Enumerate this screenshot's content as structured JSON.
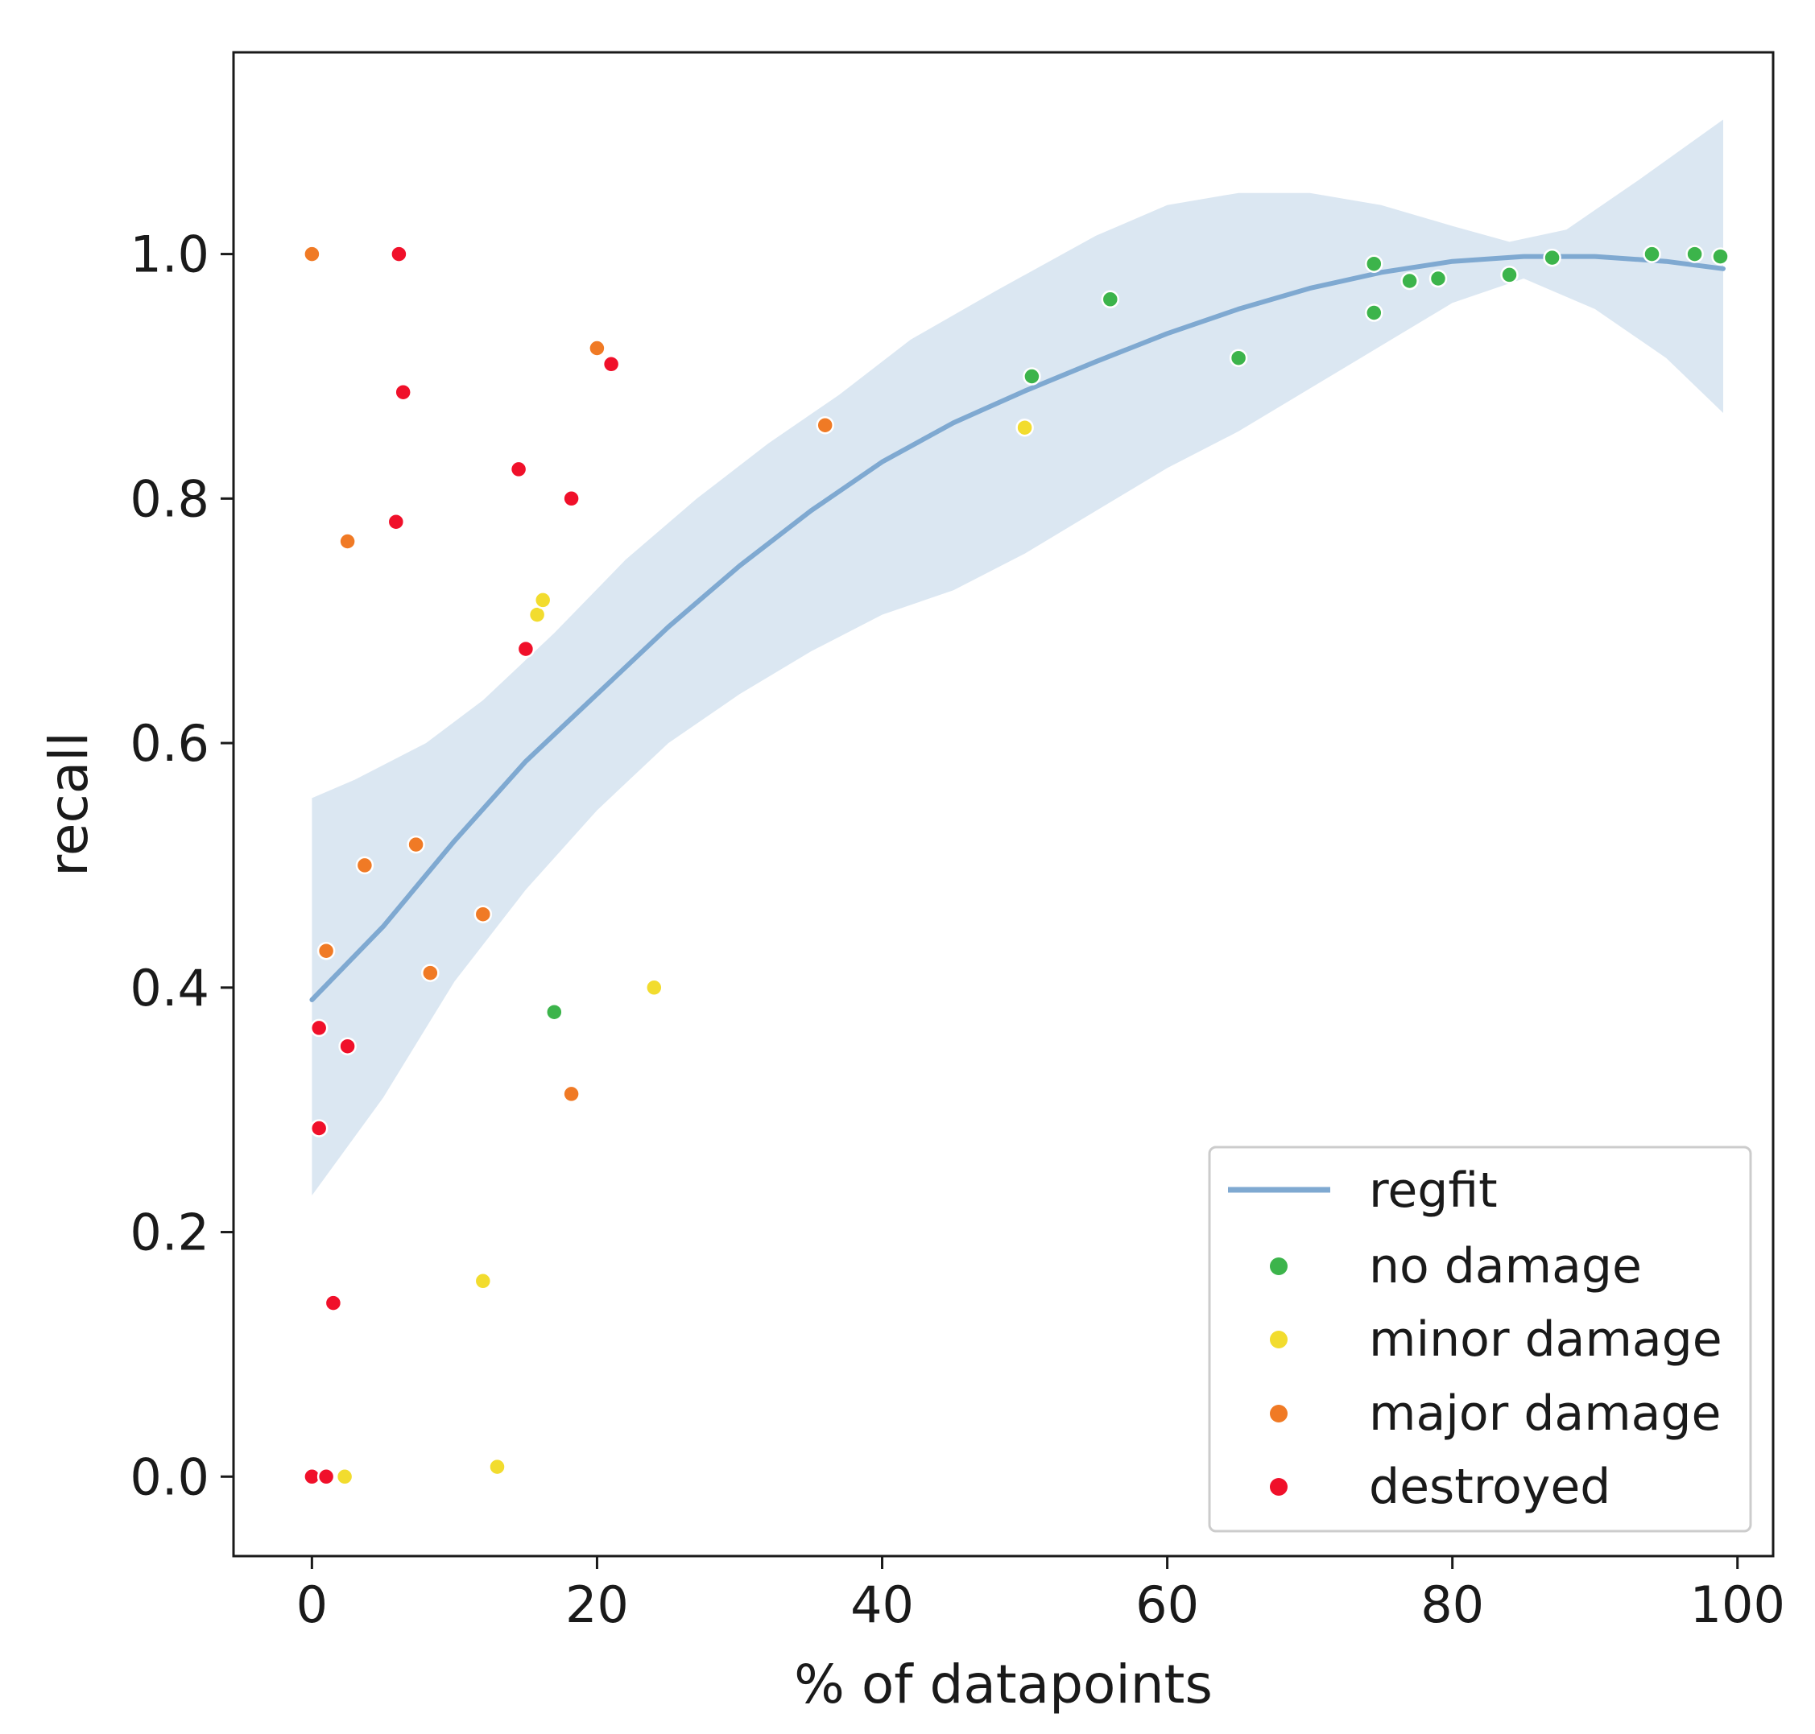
{
  "chart_data": {
    "type": "scatter",
    "title": "",
    "xlabel": "% of datapoints",
    "ylabel": "recall",
    "xlim": [
      -5.5,
      102.5
    ],
    "ylim": [
      -0.065,
      1.165
    ],
    "xticks": [
      0,
      20,
      40,
      60,
      80,
      100
    ],
    "xtick_labels": [
      "0",
      "20",
      "40",
      "60",
      "80",
      "100"
    ],
    "yticks": [
      0.0,
      0.2,
      0.4,
      0.6,
      0.8,
      1.0
    ],
    "ytick_labels": [
      "0.0",
      "0.2",
      "0.4",
      "0.6",
      "0.8",
      "1.0"
    ],
    "grid": false,
    "legend_position": "lower-right",
    "legend_labels": [
      "regfit",
      "no damage",
      "minor damage",
      "major damage",
      "destroyed"
    ],
    "regfit": {
      "name": "regfit",
      "color": "#7fa9d1",
      "band_color": "#dbe7f2",
      "line": [
        {
          "x": 0,
          "y": 0.39
        },
        {
          "x": 5,
          "y": 0.45
        },
        {
          "x": 10,
          "y": 0.52
        },
        {
          "x": 15,
          "y": 0.585
        },
        {
          "x": 20,
          "y": 0.64
        },
        {
          "x": 25,
          "y": 0.695
        },
        {
          "x": 30,
          "y": 0.745
        },
        {
          "x": 35,
          "y": 0.79
        },
        {
          "x": 40,
          "y": 0.83
        },
        {
          "x": 45,
          "y": 0.862
        },
        {
          "x": 50,
          "y": 0.888
        },
        {
          "x": 55,
          "y": 0.912
        },
        {
          "x": 60,
          "y": 0.935
        },
        {
          "x": 65,
          "y": 0.955
        },
        {
          "x": 70,
          "y": 0.972
        },
        {
          "x": 75,
          "y": 0.985
        },
        {
          "x": 80,
          "y": 0.994
        },
        {
          "x": 85,
          "y": 0.998
        },
        {
          "x": 90,
          "y": 0.998
        },
        {
          "x": 95,
          "y": 0.994
        },
        {
          "x": 99,
          "y": 0.988
        }
      ],
      "band_upper": [
        {
          "x": 0,
          "y": 0.555
        },
        {
          "x": 3,
          "y": 0.57
        },
        {
          "x": 8,
          "y": 0.6
        },
        {
          "x": 12,
          "y": 0.635
        },
        {
          "x": 17,
          "y": 0.69
        },
        {
          "x": 22,
          "y": 0.75
        },
        {
          "x": 27,
          "y": 0.8
        },
        {
          "x": 32,
          "y": 0.845
        },
        {
          "x": 37,
          "y": 0.885
        },
        {
          "x": 42,
          "y": 0.93
        },
        {
          "x": 48,
          "y": 0.97
        },
        {
          "x": 55,
          "y": 1.015
        },
        {
          "x": 60,
          "y": 1.04
        },
        {
          "x": 65,
          "y": 1.05
        },
        {
          "x": 70,
          "y": 1.05
        },
        {
          "x": 75,
          "y": 1.04
        },
        {
          "x": 80,
          "y": 1.023
        },
        {
          "x": 84,
          "y": 1.01
        },
        {
          "x": 88,
          "y": 1.02
        },
        {
          "x": 93,
          "y": 1.06
        },
        {
          "x": 99,
          "y": 1.11
        }
      ],
      "band_lower": [
        {
          "x": 99,
          "y": 0.87
        },
        {
          "x": 95,
          "y": 0.915
        },
        {
          "x": 90,
          "y": 0.955
        },
        {
          "x": 85,
          "y": 0.98
        },
        {
          "x": 80,
          "y": 0.96
        },
        {
          "x": 75,
          "y": 0.925
        },
        {
          "x": 70,
          "y": 0.89
        },
        {
          "x": 65,
          "y": 0.855
        },
        {
          "x": 60,
          "y": 0.825
        },
        {
          "x": 55,
          "y": 0.79
        },
        {
          "x": 50,
          "y": 0.755
        },
        {
          "x": 45,
          "y": 0.725
        },
        {
          "x": 40,
          "y": 0.705
        },
        {
          "x": 35,
          "y": 0.675
        },
        {
          "x": 30,
          "y": 0.64
        },
        {
          "x": 25,
          "y": 0.6
        },
        {
          "x": 20,
          "y": 0.545
        },
        {
          "x": 15,
          "y": 0.48
        },
        {
          "x": 10,
          "y": 0.405
        },
        {
          "x": 5,
          "y": 0.31
        },
        {
          "x": 0,
          "y": 0.23
        }
      ]
    },
    "series": [
      {
        "name": "no damage",
        "color": "#3cb44b",
        "points": [
          {
            "x": 17,
            "y": 0.38
          },
          {
            "x": 50.5,
            "y": 0.9
          },
          {
            "x": 56,
            "y": 0.963
          },
          {
            "x": 65,
            "y": 0.915
          },
          {
            "x": 74.5,
            "y": 0.992
          },
          {
            "x": 74.5,
            "y": 0.952
          },
          {
            "x": 77,
            "y": 0.978
          },
          {
            "x": 79,
            "y": 0.98
          },
          {
            "x": 84,
            "y": 0.983
          },
          {
            "x": 87,
            "y": 0.997
          },
          {
            "x": 94,
            "y": 1.0
          },
          {
            "x": 97,
            "y": 1.0
          },
          {
            "x": 98.8,
            "y": 0.998
          }
        ]
      },
      {
        "name": "minor damage",
        "color": "#f2dc2e",
        "points": [
          {
            "x": 2.3,
            "y": 0.0
          },
          {
            "x": 12,
            "y": 0.16
          },
          {
            "x": 13,
            "y": 0.008
          },
          {
            "x": 15.8,
            "y": 0.705
          },
          {
            "x": 16.2,
            "y": 0.717
          },
          {
            "x": 24,
            "y": 0.4
          },
          {
            "x": 50,
            "y": 0.858
          }
        ]
      },
      {
        "name": "major damage",
        "color": "#f07a25",
        "points": [
          {
            "x": 0,
            "y": 1.0
          },
          {
            "x": 1,
            "y": 0.43
          },
          {
            "x": 2.5,
            "y": 0.765
          },
          {
            "x": 3.7,
            "y": 0.5
          },
          {
            "x": 7.3,
            "y": 0.517
          },
          {
            "x": 8.3,
            "y": 0.412
          },
          {
            "x": 12,
            "y": 0.46
          },
          {
            "x": 18.2,
            "y": 0.313
          },
          {
            "x": 20,
            "y": 0.923
          },
          {
            "x": 36,
            "y": 0.86
          }
        ]
      },
      {
        "name": "destroyed",
        "color": "#f0102a",
        "points": [
          {
            "x": 0,
            "y": 0.0
          },
          {
            "x": 1,
            "y": 0.0
          },
          {
            "x": 0.5,
            "y": 0.367
          },
          {
            "x": 0.5,
            "y": 0.285
          },
          {
            "x": 1.5,
            "y": 0.142
          },
          {
            "x": 2.5,
            "y": 0.352
          },
          {
            "x": 5.9,
            "y": 0.781
          },
          {
            "x": 6.1,
            "y": 1.0
          },
          {
            "x": 6.4,
            "y": 0.887
          },
          {
            "x": 14.5,
            "y": 0.824
          },
          {
            "x": 15,
            "y": 0.677
          },
          {
            "x": 18.2,
            "y": 0.8
          },
          {
            "x": 21,
            "y": 0.91
          }
        ]
      }
    ]
  }
}
